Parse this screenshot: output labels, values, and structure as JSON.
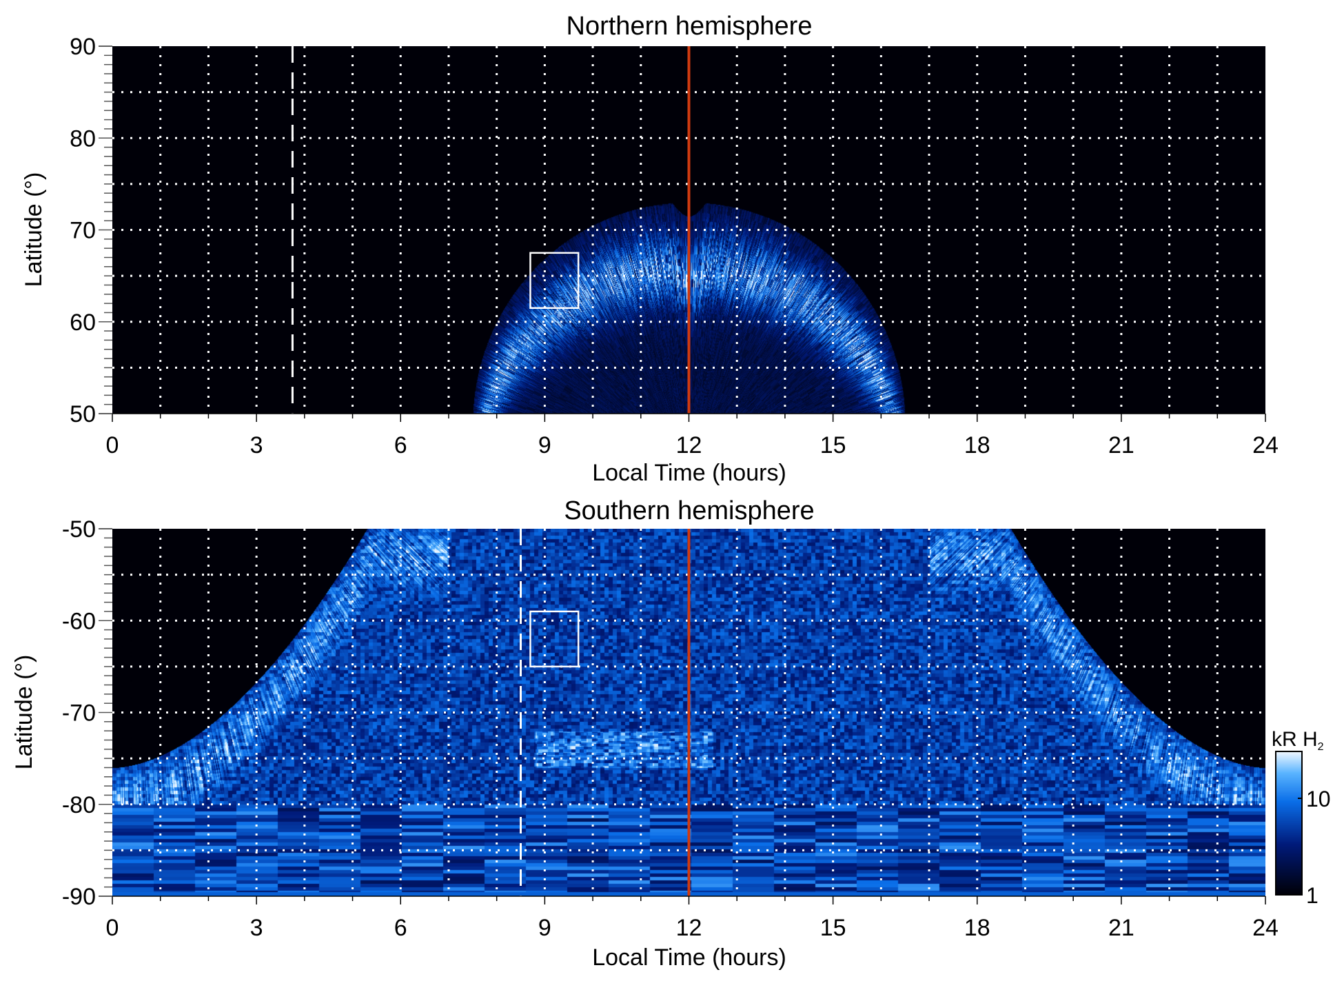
{
  "chart_data": [
    {
      "type": "heatmap",
      "id": "north",
      "title": "Northern hemisphere",
      "xlabel": "Local Time (hours)",
      "ylabel": "Latitude (°)",
      "xlim": [
        0,
        24
      ],
      "ylim": [
        50,
        90
      ],
      "xticks": [
        "0",
        "3",
        "6",
        "9",
        "12",
        "15",
        "18",
        "21",
        "24"
      ],
      "yticks": [
        "50",
        "60",
        "70",
        "80",
        "90"
      ],
      "grid": true,
      "grid_step": {
        "x_hours": 1,
        "y_degrees": 5
      },
      "dashed_line_local_time": 3.75,
      "noon_line_local_time": 12,
      "box": {
        "lt": [
          8.7,
          9.7
        ],
        "lat": [
          61.5,
          67.5
        ]
      },
      "emission": "dayside auroral oval from ~7.5 to ~16.5 LT, poleward edge ~73°, brightest band ~63–70°"
    },
    {
      "type": "heatmap",
      "id": "south",
      "title": "Southern hemisphere",
      "xlabel": "Local Time (hours)",
      "ylabel": "Latitude (°)",
      "xlim": [
        0,
        24
      ],
      "ylim": [
        -90,
        -50
      ],
      "xticks": [
        "0",
        "3",
        "6",
        "9",
        "12",
        "15",
        "18",
        "21",
        "24"
      ],
      "yticks": [
        "-90",
        "-80",
        "-70",
        "-60",
        "-50"
      ],
      "grid": true,
      "grid_step": {
        "x_hours": 1,
        "y_degrees": 5
      },
      "dashed_line_local_time": 8.5,
      "noon_line_local_time": 12,
      "box": {
        "lt": [
          8.7,
          9.7
        ],
        "lat": [
          -65,
          -59
        ]
      },
      "emission": "broad emission, bright arcs near 3–6 LT and 18–21 LT, bright patch ~-74° near 9–12 LT"
    }
  ],
  "colorbar": {
    "label": "kR H",
    "label_subscript": "2",
    "scale": "log",
    "range": [
      1,
      30
    ],
    "ticks": [
      "1",
      "10"
    ],
    "tick_values": [
      1,
      10
    ]
  },
  "colors": {
    "noon_line": "#d03a10",
    "markers": "#ffffff",
    "background": "#000000"
  }
}
